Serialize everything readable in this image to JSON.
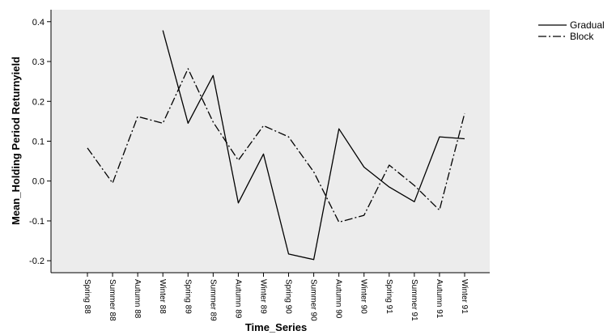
{
  "chart_data": {
    "type": "line",
    "title": "",
    "xlabel": "Time_Series",
    "ylabel": "Mean_Holding Period Returnyield",
    "categories": [
      "Spring 88",
      "Summer 88",
      "Autumn 88",
      "Winter 88",
      "Spring 89",
      "Summer 89",
      "Autumn 89",
      "Winter 89",
      "Spring 90",
      "Summer 90",
      "Autumn 90",
      "Winter 90",
      "Spring 91",
      "Summer 91",
      "Autumn 91",
      "Winter 91"
    ],
    "ylim": [
      -0.23,
      0.43
    ],
    "yticks": [
      -0.2,
      -0.1,
      0.0,
      0.1,
      0.2,
      0.3,
      0.4
    ],
    "ytick_labels": [
      "-0.2",
      "-0.1",
      "0.0",
      "0.1",
      "0.2",
      "0.3",
      "0.4"
    ],
    "grid": false,
    "legend_position": "top-right, outside plot",
    "plot_background": "#ececec",
    "series": [
      {
        "name": "Gradual",
        "style": "solid",
        "color": "#000000",
        "values": [
          null,
          null,
          null,
          0.378,
          0.145,
          0.265,
          -0.055,
          0.068,
          -0.183,
          -0.197,
          0.131,
          0.035,
          -0.015,
          -0.052,
          0.111,
          0.106
        ]
      },
      {
        "name": "Block",
        "style": "dash-dot",
        "color": "#000000",
        "values": [
          0.083,
          -0.005,
          0.162,
          0.145,
          0.282,
          0.148,
          0.052,
          0.139,
          0.111,
          0.023,
          -0.103,
          -0.086,
          0.04,
          -0.011,
          -0.073,
          0.17
        ]
      }
    ]
  }
}
